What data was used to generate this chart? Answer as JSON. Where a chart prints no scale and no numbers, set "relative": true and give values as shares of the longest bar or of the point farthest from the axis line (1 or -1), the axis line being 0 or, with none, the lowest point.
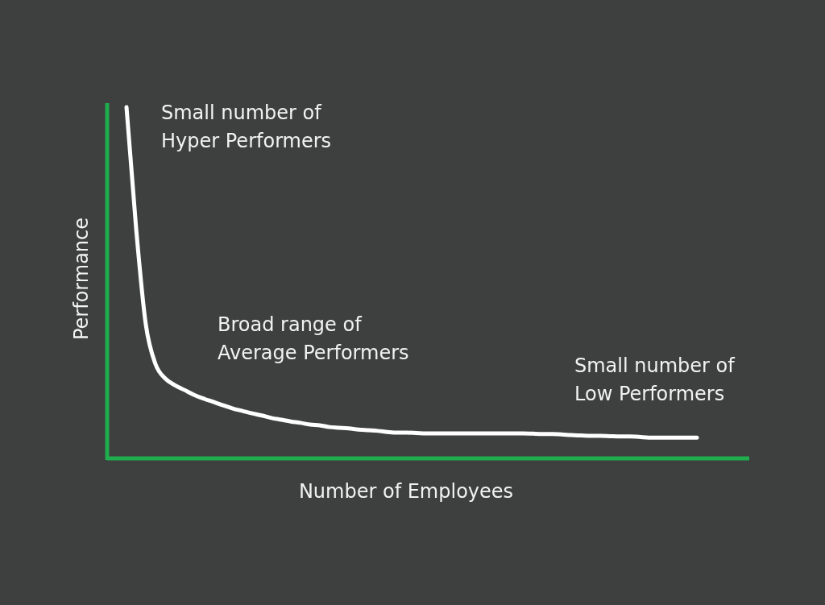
{
  "chart_data": {
    "type": "line",
    "relative": true,
    "xlabel": "Number of Employees",
    "ylabel": "Performance",
    "annotations": [
      "Small number of\nHyper Performers",
      "Broad range of\nAverage Performers",
      "Small number of\nLow Performers"
    ],
    "categories": [
      null,
      null,
      null,
      null,
      null,
      null,
      null,
      null,
      null,
      null,
      null,
      null,
      null,
      null,
      null,
      null,
      null,
      null,
      null,
      null,
      null,
      null,
      null,
      null,
      null,
      null,
      null,
      null,
      null,
      null,
      null,
      null,
      null,
      null,
      null,
      null,
      null,
      null,
      null,
      null,
      null,
      null,
      null,
      null,
      null,
      null,
      null,
      null,
      null,
      null,
      null,
      null,
      null,
      null,
      null,
      null,
      null,
      null,
      null,
      null
    ],
    "series": [
      {
        "color": "#ffffff",
        "values": [
          1.0,
          0.652,
          0.378,
          0.265,
          0.224,
          0.205,
          0.191,
          0.177,
          0.166,
          0.157,
          0.147,
          0.138,
          0.131,
          0.124,
          0.118,
          0.111,
          0.106,
          0.101,
          0.097,
          0.092,
          0.09,
          0.085,
          0.083,
          0.081,
          0.078,
          0.076,
          0.074,
          0.071,
          0.069,
          0.069,
          0.068,
          0.067,
          0.067,
          0.067,
          0.067,
          0.067,
          0.067,
          0.067,
          0.067,
          0.067,
          0.067,
          0.067,
          0.066,
          0.065,
          0.065,
          0.064,
          0.062,
          0.061,
          0.06,
          0.06,
          0.059,
          0.058,
          0.058,
          0.057,
          0.055,
          0.055,
          0.055,
          0.055,
          0.055,
          0.055
        ]
      }
    ]
  }
}
